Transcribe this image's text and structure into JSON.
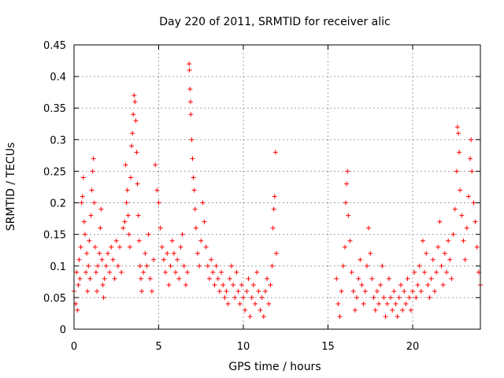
{
  "chart_data": {
    "type": "scatter",
    "title": "Day 220 of 2011, SRMTID for receiver alic",
    "xlabel": "GPS time / hours",
    "ylabel": "SRMTID / TECUs",
    "xlim": [
      0,
      24
    ],
    "ylim": [
      0,
      0.45
    ],
    "x_ticks": [
      0,
      5,
      10,
      15,
      20
    ],
    "x_tick_labels": [
      "0",
      "5",
      "10",
      "15",
      "20"
    ],
    "y_ticks": [
      0,
      0.05,
      0.1,
      0.15,
      0.2,
      0.25,
      0.3,
      0.35,
      0.4,
      0.45
    ],
    "y_tick_labels": [
      "0",
      "0.05",
      "0.1",
      "0.15",
      "0.2",
      "0.25",
      "0.3",
      "0.35",
      "0.4",
      "0.45"
    ],
    "grid": true,
    "marker": "plus",
    "color": "#ff0000",
    "series": [
      {
        "name": "SRMTID",
        "points": [
          [
            0.0,
            0.06
          ],
          [
            0.1,
            0.04
          ],
          [
            0.15,
            0.09
          ],
          [
            0.2,
            0.03
          ],
          [
            0.25,
            0.07
          ],
          [
            0.3,
            0.11
          ],
          [
            0.35,
            0.08
          ],
          [
            0.4,
            0.13
          ],
          [
            0.45,
            0.2
          ],
          [
            0.5,
            0.21
          ],
          [
            0.55,
            0.24
          ],
          [
            0.6,
            0.17
          ],
          [
            0.65,
            0.15
          ],
          [
            0.7,
            0.09
          ],
          [
            0.75,
            0.12
          ],
          [
            0.8,
            0.06
          ],
          [
            0.85,
            0.1
          ],
          [
            0.9,
            0.14
          ],
          [
            0.95,
            0.08
          ],
          [
            1.0,
            0.18
          ],
          [
            1.05,
            0.22
          ],
          [
            1.1,
            0.25
          ],
          [
            1.15,
            0.27
          ],
          [
            1.2,
            0.2
          ],
          [
            1.25,
            0.13
          ],
          [
            1.3,
            0.09
          ],
          [
            1.35,
            0.06
          ],
          [
            1.4,
            0.1
          ],
          [
            1.5,
            0.12
          ],
          [
            1.55,
            0.16
          ],
          [
            1.6,
            0.19
          ],
          [
            1.65,
            0.11
          ],
          [
            1.7,
            0.07
          ],
          [
            1.75,
            0.05
          ],
          [
            1.8,
            0.08
          ],
          [
            1.9,
            0.1
          ],
          [
            2.0,
            0.12
          ],
          [
            2.1,
            0.09
          ],
          [
            2.2,
            0.13
          ],
          [
            2.3,
            0.11
          ],
          [
            2.4,
            0.08
          ],
          [
            2.5,
            0.14
          ],
          [
            2.6,
            0.1
          ],
          [
            2.7,
            0.13
          ],
          [
            2.8,
            0.09
          ],
          [
            2.9,
            0.16
          ],
          [
            3.0,
            0.17
          ],
          [
            3.05,
            0.26
          ],
          [
            3.1,
            0.2
          ],
          [
            3.15,
            0.22
          ],
          [
            3.2,
            0.18
          ],
          [
            3.25,
            0.15
          ],
          [
            3.3,
            0.13
          ],
          [
            3.35,
            0.24
          ],
          [
            3.4,
            0.29
          ],
          [
            3.45,
            0.31
          ],
          [
            3.5,
            0.34
          ],
          [
            3.55,
            0.37
          ],
          [
            3.6,
            0.36
          ],
          [
            3.65,
            0.33
          ],
          [
            3.7,
            0.28
          ],
          [
            3.75,
            0.23
          ],
          [
            3.8,
            0.18
          ],
          [
            3.85,
            0.14
          ],
          [
            3.9,
            0.1
          ],
          [
            3.95,
            0.08
          ],
          [
            4.0,
            0.06
          ],
          [
            4.1,
            0.09
          ],
          [
            4.2,
            0.12
          ],
          [
            4.3,
            0.1
          ],
          [
            4.4,
            0.15
          ],
          [
            4.5,
            0.08
          ],
          [
            4.6,
            0.06
          ],
          [
            4.7,
            0.11
          ],
          [
            4.8,
            0.26
          ],
          [
            4.9,
            0.22
          ],
          [
            5.0,
            0.2
          ],
          [
            5.1,
            0.16
          ],
          [
            5.2,
            0.13
          ],
          [
            5.3,
            0.11
          ],
          [
            5.4,
            0.09
          ],
          [
            5.5,
            0.12
          ],
          [
            5.6,
            0.07
          ],
          [
            5.7,
            0.1
          ],
          [
            5.8,
            0.14
          ],
          [
            5.9,
            0.12
          ],
          [
            6.0,
            0.09
          ],
          [
            6.1,
            0.11
          ],
          [
            6.2,
            0.08
          ],
          [
            6.3,
            0.13
          ],
          [
            6.4,
            0.15
          ],
          [
            6.5,
            0.1
          ],
          [
            6.6,
            0.07
          ],
          [
            6.7,
            0.09
          ],
          [
            6.8,
            0.42
          ],
          [
            6.82,
            0.41
          ],
          [
            6.85,
            0.38
          ],
          [
            6.88,
            0.36
          ],
          [
            6.9,
            0.34
          ],
          [
            6.95,
            0.3
          ],
          [
            7.0,
            0.27
          ],
          [
            7.05,
            0.24
          ],
          [
            7.1,
            0.22
          ],
          [
            7.15,
            0.19
          ],
          [
            7.2,
            0.16
          ],
          [
            7.3,
            0.12
          ],
          [
            7.4,
            0.1
          ],
          [
            7.5,
            0.14
          ],
          [
            7.6,
            0.2
          ],
          [
            7.7,
            0.17
          ],
          [
            7.8,
            0.13
          ],
          [
            7.9,
            0.1
          ],
          [
            8.0,
            0.08
          ],
          [
            8.1,
            0.11
          ],
          [
            8.2,
            0.09
          ],
          [
            8.3,
            0.07
          ],
          [
            8.4,
            0.1
          ],
          [
            8.5,
            0.08
          ],
          [
            8.6,
            0.06
          ],
          [
            8.7,
            0.09
          ],
          [
            8.8,
            0.07
          ],
          [
            8.9,
            0.05
          ],
          [
            9.0,
            0.06
          ],
          [
            9.1,
            0.04
          ],
          [
            9.2,
            0.08
          ],
          [
            9.3,
            0.1
          ],
          [
            9.4,
            0.07
          ],
          [
            9.5,
            0.05
          ],
          [
            9.6,
            0.09
          ],
          [
            9.7,
            0.06
          ],
          [
            9.8,
            0.04
          ],
          [
            9.9,
            0.07
          ],
          [
            10.0,
            0.05
          ],
          [
            10.1,
            0.03
          ],
          [
            10.2,
            0.06
          ],
          [
            10.3,
            0.08
          ],
          [
            10.4,
            0.02
          ],
          [
            10.5,
            0.05
          ],
          [
            10.6,
            0.07
          ],
          [
            10.7,
            0.04
          ],
          [
            10.8,
            0.09
          ],
          [
            10.9,
            0.06
          ],
          [
            11.0,
            0.03
          ],
          [
            11.1,
            0.05
          ],
          [
            11.2,
            0.02
          ],
          [
            11.3,
            0.06
          ],
          [
            11.4,
            0.08
          ],
          [
            11.5,
            0.04
          ],
          [
            11.6,
            0.07
          ],
          [
            11.7,
            0.1
          ],
          [
            11.75,
            0.16
          ],
          [
            11.8,
            0.19
          ],
          [
            11.85,
            0.21
          ],
          [
            11.9,
            0.28
          ],
          [
            11.95,
            0.12
          ],
          [
            15.5,
            0.08
          ],
          [
            15.6,
            0.04
          ],
          [
            15.7,
            0.02
          ],
          [
            15.8,
            0.06
          ],
          [
            15.9,
            0.1
          ],
          [
            16.0,
            0.13
          ],
          [
            16.05,
            0.2
          ],
          [
            16.1,
            0.23
          ],
          [
            16.15,
            0.25
          ],
          [
            16.2,
            0.18
          ],
          [
            16.3,
            0.14
          ],
          [
            16.4,
            0.09
          ],
          [
            16.5,
            0.06
          ],
          [
            16.6,
            0.03
          ],
          [
            16.7,
            0.05
          ],
          [
            16.8,
            0.08
          ],
          [
            16.9,
            0.11
          ],
          [
            17.0,
            0.07
          ],
          [
            17.1,
            0.04
          ],
          [
            17.2,
            0.06
          ],
          [
            17.3,
            0.1
          ],
          [
            17.4,
            0.16
          ],
          [
            17.5,
            0.12
          ],
          [
            17.6,
            0.08
          ],
          [
            17.7,
            0.05
          ],
          [
            17.8,
            0.03
          ],
          [
            17.9,
            0.06
          ],
          [
            18.0,
            0.04
          ],
          [
            18.1,
            0.07
          ],
          [
            18.2,
            0.1
          ],
          [
            18.3,
            0.05
          ],
          [
            18.4,
            0.02
          ],
          [
            18.5,
            0.04
          ],
          [
            18.6,
            0.08
          ],
          [
            18.7,
            0.05
          ],
          [
            18.8,
            0.03
          ],
          [
            18.9,
            0.06
          ],
          [
            19.0,
            0.04
          ],
          [
            19.1,
            0.02
          ],
          [
            19.2,
            0.05
          ],
          [
            19.3,
            0.07
          ],
          [
            19.4,
            0.03
          ],
          [
            19.5,
            0.06
          ],
          [
            19.6,
            0.04
          ],
          [
            19.7,
            0.08
          ],
          [
            19.8,
            0.05
          ],
          [
            19.9,
            0.03
          ],
          [
            20.0,
            0.06
          ],
          [
            20.1,
            0.09
          ],
          [
            20.2,
            0.05
          ],
          [
            20.3,
            0.07
          ],
          [
            20.4,
            0.1
          ],
          [
            20.5,
            0.06
          ],
          [
            20.6,
            0.14
          ],
          [
            20.7,
            0.09
          ],
          [
            20.8,
            0.12
          ],
          [
            20.9,
            0.07
          ],
          [
            21.0,
            0.05
          ],
          [
            21.1,
            0.08
          ],
          [
            21.2,
            0.11
          ],
          [
            21.3,
            0.06
          ],
          [
            21.4,
            0.09
          ],
          [
            21.5,
            0.13
          ],
          [
            21.6,
            0.17
          ],
          [
            21.7,
            0.1
          ],
          [
            21.8,
            0.07
          ],
          [
            21.9,
            0.12
          ],
          [
            22.0,
            0.09
          ],
          [
            22.1,
            0.14
          ],
          [
            22.2,
            0.11
          ],
          [
            22.3,
            0.08
          ],
          [
            22.4,
            0.15
          ],
          [
            22.5,
            0.19
          ],
          [
            22.6,
            0.25
          ],
          [
            22.65,
            0.32
          ],
          [
            22.7,
            0.31
          ],
          [
            22.75,
            0.28
          ],
          [
            22.8,
            0.22
          ],
          [
            22.9,
            0.18
          ],
          [
            23.0,
            0.14
          ],
          [
            23.1,
            0.11
          ],
          [
            23.2,
            0.16
          ],
          [
            23.3,
            0.21
          ],
          [
            23.4,
            0.27
          ],
          [
            23.45,
            0.3
          ],
          [
            23.5,
            0.25
          ],
          [
            23.6,
            0.2
          ],
          [
            23.7,
            0.17
          ],
          [
            23.8,
            0.13
          ],
          [
            23.9,
            0.09
          ],
          [
            24.0,
            0.07
          ]
        ]
      }
    ]
  }
}
